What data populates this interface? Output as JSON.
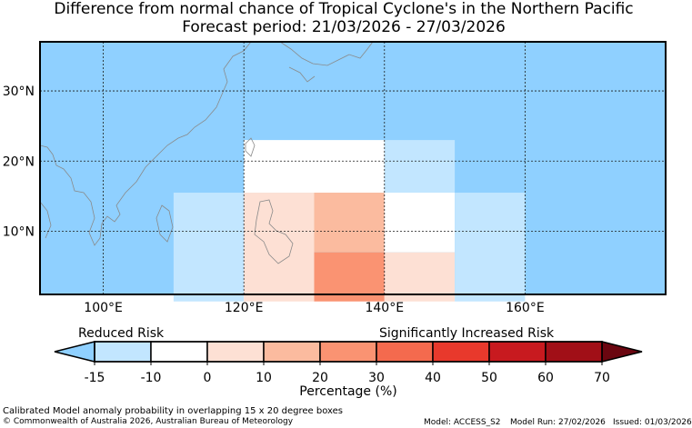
{
  "title": {
    "line1": "Difference from normal chance of Tropical Cyclone's in the Northern Pacific",
    "line2": "Forecast period: 21/03/2026 - 27/03/2026"
  },
  "map": {
    "lat_labels": [
      "30°N",
      "20°N",
      "10°N"
    ],
    "lon_labels": [
      "100°E",
      "120°E",
      "140°E",
      "160°E"
    ],
    "ocean_color": "#8fd0ff"
  },
  "boxes": [
    {
      "lon0": 120,
      "lon1": 140,
      "lat0": 15.5,
      "lat1": 23.0,
      "color": "#ffffff"
    },
    {
      "lon0": 140,
      "lon1": 150,
      "lat0": 15.5,
      "lat1": 23.0,
      "color": "#c2e6ff"
    },
    {
      "lon0": 110,
      "lon1": 120,
      "lat0": 0.0,
      "lat1": 15.5,
      "color": "#c2e6ff"
    },
    {
      "lon0": 120,
      "lon1": 130,
      "lat0": 0.0,
      "lat1": 15.5,
      "color": "#fde0d4"
    },
    {
      "lon0": 130,
      "lon1": 140,
      "lat0": 7.0,
      "lat1": 15.5,
      "color": "#fbbb9f"
    },
    {
      "lon0": 130,
      "lon1": 140,
      "lat0": 0.0,
      "lat1": 7.0,
      "color": "#fa9372"
    },
    {
      "lon0": 140,
      "lon1": 150,
      "lat0": 7.0,
      "lat1": 15.5,
      "color": "#ffffff"
    },
    {
      "lon0": 140,
      "lon1": 150,
      "lat0": 0.0,
      "lat1": 7.0,
      "color": "#fde0d4"
    },
    {
      "lon0": 150,
      "lon1": 160,
      "lat0": 0.0,
      "lat1": 15.5,
      "color": "#c2e6ff"
    }
  ],
  "colorbar": {
    "reduced_label": "Reduced Risk",
    "increased_label": "Significantly Increased Risk",
    "title": "Percentage (%)",
    "ticks": [
      "-15",
      "-10",
      "0",
      "10",
      "20",
      "30",
      "40",
      "50",
      "60",
      "70"
    ],
    "low_extend_color": "#8fd0ff",
    "high_extend_color": "#6b0610",
    "segments": [
      "#c2e6ff",
      "#ffffff",
      "#fde0d4",
      "#fbbb9f",
      "#fa9372",
      "#f46a4e",
      "#e8392c",
      "#c81a1f",
      "#a10f17"
    ]
  },
  "footer": {
    "caption": "Calibrated Model anomaly probability in overlapping 15 x 20 degree boxes",
    "copyright": "© Commonwealth of Australia 2026, Australian Bureau of Meteorology",
    "model": "Model: ACCESS_S2",
    "model_run": "Model Run: 27/02/2026",
    "issued": "Issued: 01/03/2026"
  }
}
